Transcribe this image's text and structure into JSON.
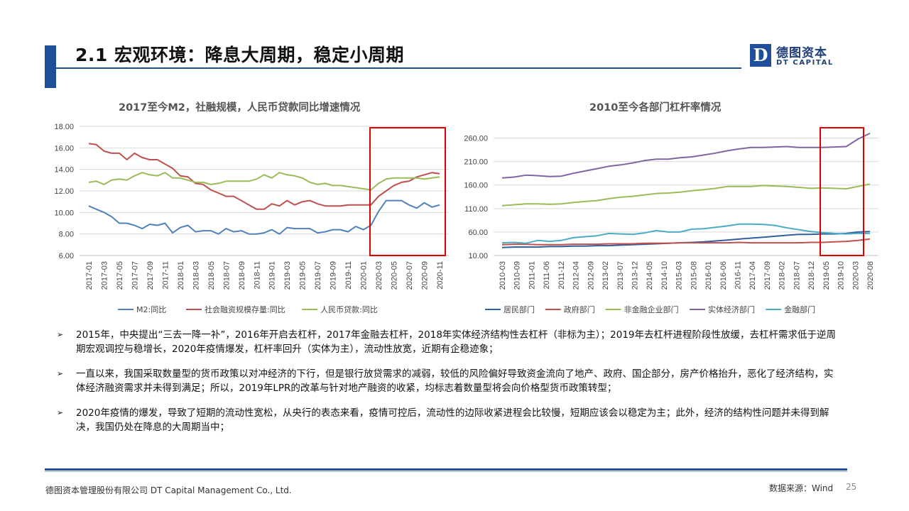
{
  "header": {
    "title": "2.1 宏观环境：降息大周期，稳定小周期",
    "logo_mark": "D",
    "logo_cn": "德图资本",
    "logo_en": "DT CAPITAL",
    "accent_color": "#1f4e9a"
  },
  "chart_data": [
    {
      "type": "line",
      "title": "2017至今M2，社融规模，人民币贷款同比增速情况",
      "xlabel": "",
      "ylabel": "",
      "ylim": [
        6,
        18
      ],
      "y_ticks": [
        "6.00",
        "8.00",
        "10.00",
        "12.00",
        "14.00",
        "16.00",
        "18.00"
      ],
      "x_tick_labels": [
        "2017-01",
        "2017-03",
        "2017-05",
        "2017-07",
        "2017-09",
        "2017-11",
        "2018-01",
        "2018-03",
        "2018-05",
        "2018-07",
        "2018-09",
        "2018-11",
        "2019-01",
        "2019-03",
        "2019-05",
        "2019-07",
        "2019-09",
        "2019-11",
        "2020-01",
        "2020-03",
        "2020-05",
        "2020-07",
        "2020-09",
        "2020-11"
      ],
      "grid": true,
      "legend": "bottom",
      "x": [
        "2017-01",
        "2017-02",
        "2017-03",
        "2017-04",
        "2017-05",
        "2017-06",
        "2017-07",
        "2017-08",
        "2017-09",
        "2017-10",
        "2017-11",
        "2017-12",
        "2018-01",
        "2018-02",
        "2018-03",
        "2018-04",
        "2018-05",
        "2018-06",
        "2018-07",
        "2018-08",
        "2018-09",
        "2018-10",
        "2018-11",
        "2018-12",
        "2019-01",
        "2019-02",
        "2019-03",
        "2019-04",
        "2019-05",
        "2019-06",
        "2019-07",
        "2019-08",
        "2019-09",
        "2019-10",
        "2019-11",
        "2019-12",
        "2020-01",
        "2020-02",
        "2020-03",
        "2020-04",
        "2020-05",
        "2020-06",
        "2020-07",
        "2020-08",
        "2020-09",
        "2020-10",
        "2020-11"
      ],
      "series": [
        {
          "name": "M2:同比",
          "color": "#4f81bd",
          "values": [
            10.6,
            10.3,
            10.0,
            9.6,
            9.0,
            9.0,
            8.8,
            8.5,
            8.9,
            8.8,
            9.0,
            8.1,
            8.6,
            8.8,
            8.2,
            8.3,
            8.3,
            8.0,
            8.5,
            8.2,
            8.3,
            8.0,
            8.0,
            8.1,
            8.4,
            8.0,
            8.6,
            8.5,
            8.5,
            8.5,
            8.1,
            8.2,
            8.4,
            8.4,
            8.2,
            8.7,
            8.4,
            8.8,
            10.1,
            11.1,
            11.1,
            11.1,
            10.7,
            10.4,
            10.9,
            10.5,
            10.7
          ]
        },
        {
          "name": "社会融资规模存量:同比",
          "color": "#c0504d",
          "values": [
            16.4,
            16.3,
            15.7,
            15.5,
            15.5,
            14.9,
            15.5,
            15.1,
            14.9,
            14.9,
            14.5,
            14.1,
            13.4,
            13.3,
            12.7,
            12.6,
            12.1,
            11.8,
            11.5,
            11.5,
            11.1,
            10.7,
            10.3,
            10.3,
            10.8,
            10.6,
            11.1,
            10.7,
            11.0,
            11.1,
            10.8,
            10.6,
            10.6,
            10.6,
            10.7,
            10.7,
            10.7,
            10.7,
            11.5,
            12.0,
            12.5,
            12.8,
            12.9,
            13.3,
            13.5,
            13.7,
            13.6
          ]
        },
        {
          "name": "人民币贷款:同比",
          "color": "#9bbb59",
          "values": [
            12.8,
            12.9,
            12.6,
            13.0,
            13.1,
            13.0,
            13.4,
            13.7,
            13.5,
            13.4,
            13.7,
            13.2,
            13.2,
            13.0,
            12.8,
            12.8,
            12.6,
            12.7,
            12.9,
            12.9,
            12.9,
            12.9,
            13.1,
            13.5,
            13.2,
            13.7,
            13.5,
            13.4,
            13.2,
            12.8,
            12.6,
            12.7,
            12.5,
            12.5,
            12.4,
            12.3,
            12.2,
            12.1,
            12.7,
            13.1,
            13.2,
            13.2,
            13.2,
            13.2,
            13.1,
            13.2,
            13.3
          ]
        }
      ]
    },
    {
      "type": "line",
      "title": "2010至今各部门杠杆率情况",
      "xlabel": "",
      "ylabel": "",
      "ylim": [
        10,
        285
      ],
      "y_ticks": [
        "10.00",
        "60.00",
        "110.00",
        "160.00",
        "210.00",
        "260.00"
      ],
      "x_tick_labels": [
        "2010-03",
        "2010-09",
        "2011-01",
        "2011-06",
        "2011-12",
        "2012-04",
        "2012-09",
        "2013-02",
        "2013-07",
        "2013-12",
        "2014-05",
        "2014-10",
        "2015-03",
        "2015-08",
        "2016-01",
        "2016-06",
        "2016-11",
        "2017-04",
        "2017-09",
        "2018-02",
        "2018-07",
        "2018-12",
        "2019-05",
        "2019-10",
        "2020-03",
        "2020-08"
      ],
      "grid": true,
      "legend": "bottom",
      "series": [
        {
          "name": "居民部门",
          "color": "#2f5f9f",
          "values": [
            27,
            28,
            28,
            28,
            29,
            29,
            30,
            30,
            31,
            31,
            32,
            33,
            34,
            35,
            36,
            37,
            38,
            39,
            41,
            43,
            45,
            47,
            49,
            51,
            53,
            55,
            55,
            56,
            56,
            57,
            60,
            61
          ]
        },
        {
          "name": "政府部门",
          "color": "#c0504d",
          "values": [
            33,
            34,
            34,
            33,
            33,
            33,
            34,
            34,
            34,
            35,
            35,
            35,
            36,
            36,
            36,
            37,
            37,
            37,
            37,
            37,
            38,
            37,
            37,
            37,
            37,
            37,
            38,
            38,
            39,
            40,
            42,
            45
          ]
        },
        {
          "name": "非金融企业部门",
          "color": "#9bbb59",
          "values": [
            116,
            118,
            120,
            120,
            119,
            120,
            123,
            125,
            127,
            131,
            134,
            136,
            139,
            142,
            143,
            145,
            148,
            150,
            153,
            157,
            157,
            157,
            159,
            158,
            157,
            155,
            153,
            154,
            153,
            152,
            157,
            162
          ]
        },
        {
          "name": "实体经济部门",
          "color": "#8064a2",
          "values": [
            175,
            177,
            181,
            180,
            178,
            179,
            185,
            190,
            195,
            200,
            203,
            207,
            212,
            215,
            215,
            218,
            220,
            224,
            228,
            233,
            237,
            240,
            240,
            241,
            242,
            240,
            240,
            240,
            241,
            242,
            258,
            270
          ]
        },
        {
          "name": "金融部门",
          "color": "#4bacc6",
          "values": [
            37,
            38,
            36,
            42,
            40,
            42,
            48,
            50,
            52,
            57,
            56,
            55,
            58,
            63,
            60,
            60,
            66,
            67,
            70,
            73,
            77,
            77,
            76,
            74,
            69,
            65,
            61,
            59,
            57,
            56,
            57,
            57
          ]
        }
      ]
    }
  ],
  "highlight_color": "#e00000",
  "bullets": [
    "2015年，中央提出“三去一降一补”，2016年开启去杠杆，2017年金融去杠杆，2018年实体经济结构性去杠杆（非标为主）；2019年去杠杆进程阶段性放缓，去杠杆需求低于逆周期宏观调控与稳增长，2020年疫情爆发，杠杆率回升（实体为主），流动性放宽，近期有企稳迹象；",
    "一直以来，我国采取数量型的货币政策以对冲经济的下行，但是银行放贷需求的减弱，较低的风险偏好导致资金流向了地产、政府、国企部分，房产价格抬升，恶化了经济结构，实体经济融资需求并未得到满足；所以，2019年LPR的改革与针对地产融资的收紧，均标志着数量型将会向价格型货币政策转型；",
    "2020年疫情的爆发，导致了短期的流动性宽松，从央行的表态来看，疫情可控后，流动性的边际收紧进程会比较慢，短期应该会以稳定为主；此外，经济的结构性问题并未得到解决，我国仍处在降息的大周期当中；"
  ],
  "bullet_mark": "➢",
  "footer": {
    "company": "德图资本管理股份有限公司  DT Capital  Management  Co., Ltd.",
    "source": "数据来源：Wind",
    "page": "25"
  }
}
